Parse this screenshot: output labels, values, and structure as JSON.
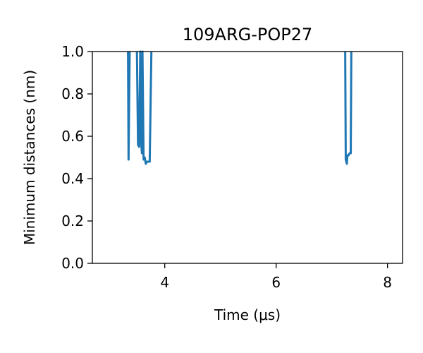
{
  "chart_data": {
    "type": "line",
    "title": "109ARG-POP27",
    "xlabel": "Time (μs)",
    "ylabel": "Minimum distances (nm)",
    "xlim": [
      2.7,
      8.27
    ],
    "ylim": [
      0.0,
      1.0
    ],
    "xticks": [
      4,
      6,
      8
    ],
    "yticks": [
      0.0,
      0.2,
      0.4,
      0.6,
      0.8,
      1.0
    ],
    "xtick_labels": [
      "4",
      "6",
      "8"
    ],
    "ytick_labels": [
      "0.0",
      "0.2",
      "0.4",
      "0.6",
      "0.8",
      "1.0"
    ],
    "grid": false,
    "series": [
      {
        "color": "#1f77b4",
        "segments": [
          {
            "x": [
              3.34,
              3.35,
              3.36,
              3.37
            ],
            "y": [
              1.0,
              0.49,
              0.75,
              1.0
            ]
          },
          {
            "x": [
              3.5,
              3.52,
              3.54,
              3.56,
              3.57,
              3.59,
              3.6,
              3.62,
              3.64,
              3.66,
              3.68,
              3.7,
              3.73,
              3.76
            ],
            "y": [
              1.0,
              0.56,
              0.55,
              1.0,
              0.6,
              0.52,
              1.0,
              0.49,
              0.5,
              0.47,
              0.48,
              0.48,
              0.48,
              1.0
            ]
          },
          {
            "x": [
              7.24,
              7.25,
              7.27,
              7.28,
              7.3,
              7.32,
              7.33,
              7.34,
              7.35
            ],
            "y": [
              1.0,
              0.49,
              0.47,
              0.51,
              0.51,
              0.52,
              0.52,
              0.52,
              1.0
            ]
          }
        ]
      }
    ]
  }
}
